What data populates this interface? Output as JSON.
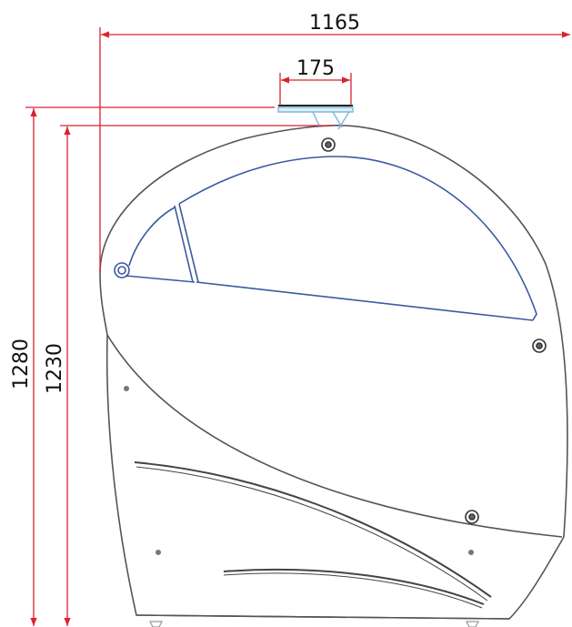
{
  "dimensions": {
    "overall_width": "1165",
    "top_width": "175",
    "overall_height": "1280",
    "body_height": "1230"
  },
  "colors": {
    "dimension_line": "#d9232d",
    "outline": "#555555",
    "canopy": "#3a5aa0",
    "handle": "#7fb8d8",
    "background": "#ffffff"
  }
}
